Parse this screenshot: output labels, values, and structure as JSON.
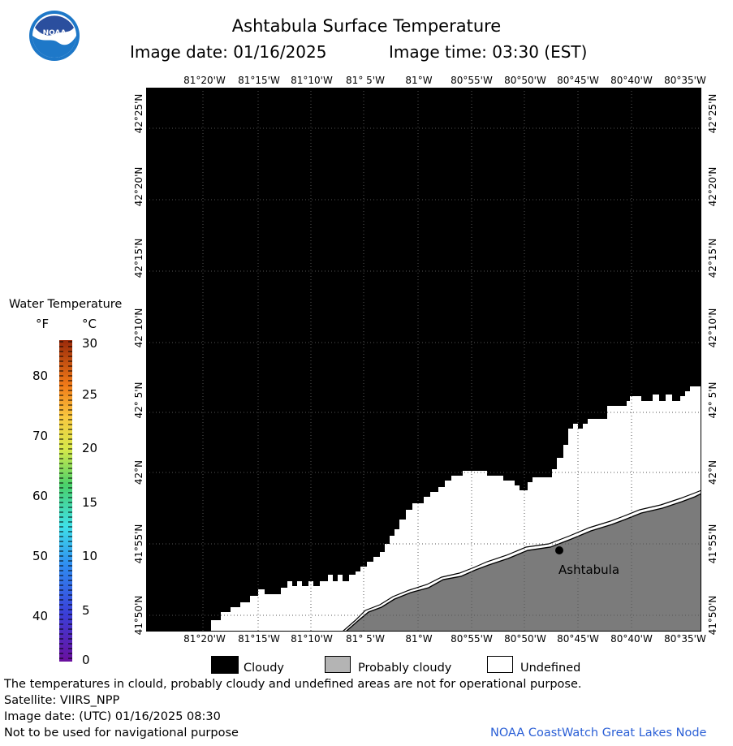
{
  "header": {
    "title": "Ashtabula Surface Temperature",
    "image_date": "Image date: 01/16/2025",
    "image_time": "Image time: 03:30 (EST)"
  },
  "logo": {
    "text": "NOAA"
  },
  "map": {
    "lon_ticks": [
      "81°20'W",
      "81°15'W",
      "81°10'W",
      "81° 5'W",
      "81°W",
      "80°55'W",
      "80°50'W",
      "80°45'W",
      "80°40'W",
      "80°35'W"
    ],
    "lat_ticks": [
      "42°25'N",
      "42°20'N",
      "42°15'N",
      "42°10'N",
      "42° 5'N",
      "42°N",
      "41°55'N",
      "41°50'N"
    ],
    "city_label": "Ashtabula",
    "colors": {
      "cloudy": "#000000",
      "land": "#7b7b7b",
      "undefined": "#ffffff"
    }
  },
  "scale": {
    "title": "Water Temperature",
    "unit_f": "°F",
    "unit_c": "°C",
    "f_labels": [
      "80",
      "70",
      "60",
      "50",
      "40"
    ],
    "c_labels": [
      "30",
      "25",
      "20",
      "15",
      "10",
      "5",
      "0"
    ]
  },
  "legend": {
    "cloudy": "Cloudy",
    "probably_cloudy": "Probably cloudy",
    "undefined": "Undefined"
  },
  "footer": {
    "line1": "The temperatures in clould, probably cloudy and undefined areas are not for operational purpose.",
    "line2": "Satellite: VIIRS_NPP",
    "line3": "Image date: (UTC) 01/16/2025  08:30",
    "line4": "Not to be used for navigational purpose",
    "credit": "NOAA CoastWatch Great Lakes Node"
  }
}
